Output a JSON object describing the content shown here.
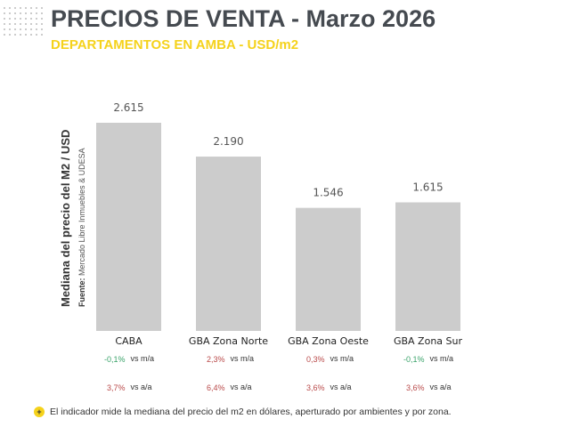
{
  "header": {
    "title": "PRECIOS DE VENTA - Marzo 2026",
    "subtitle": "DEPARTAMENTOS EN AMBA - USD/m2"
  },
  "chart_data": {
    "type": "bar",
    "categories": [
      "CABA",
      "GBA Zona Norte",
      "GBA Zona Oeste",
      "GBA Zona Sur"
    ],
    "values": [
      2615,
      2190,
      1546,
      1615
    ],
    "value_labels": [
      "2.615",
      "2.190",
      "1.546",
      "1.615"
    ],
    "ylabel": "Mediana del precio del M2 / USD",
    "source_prefix": "Fuente:",
    "source": "Mercado Libre Inmuebles & UDESA",
    "ylim": [
      0,
      2615
    ],
    "grid": false,
    "bar_color": "#cccccc",
    "changes_mom": [
      {
        "value": "-0,1%",
        "label": "vs m/a",
        "color": "#3aa36a"
      },
      {
        "value": "2,3%",
        "label": "vs m/a",
        "color": "#b94a4a"
      },
      {
        "value": "0,3%",
        "label": "vs m/a",
        "color": "#b94a4a"
      },
      {
        "value": "-0,1%",
        "label": "vs m/a",
        "color": "#3aa36a"
      }
    ],
    "changes_yoy": [
      {
        "value": "3,7%",
        "label": "vs a/a",
        "color": "#b94a4a"
      },
      {
        "value": "6,4%",
        "label": "vs a/a",
        "color": "#b94a4a"
      },
      {
        "value": "3,6%",
        "label": "vs a/a",
        "color": "#b94a4a"
      },
      {
        "value": "3,6%",
        "label": "vs a/a",
        "color": "#b94a4a"
      }
    ]
  },
  "footer": {
    "bullet": "+",
    "note": "El indicador mide la mediana del precio del m2 en dólares, aperturado por ambientes y por zona."
  }
}
